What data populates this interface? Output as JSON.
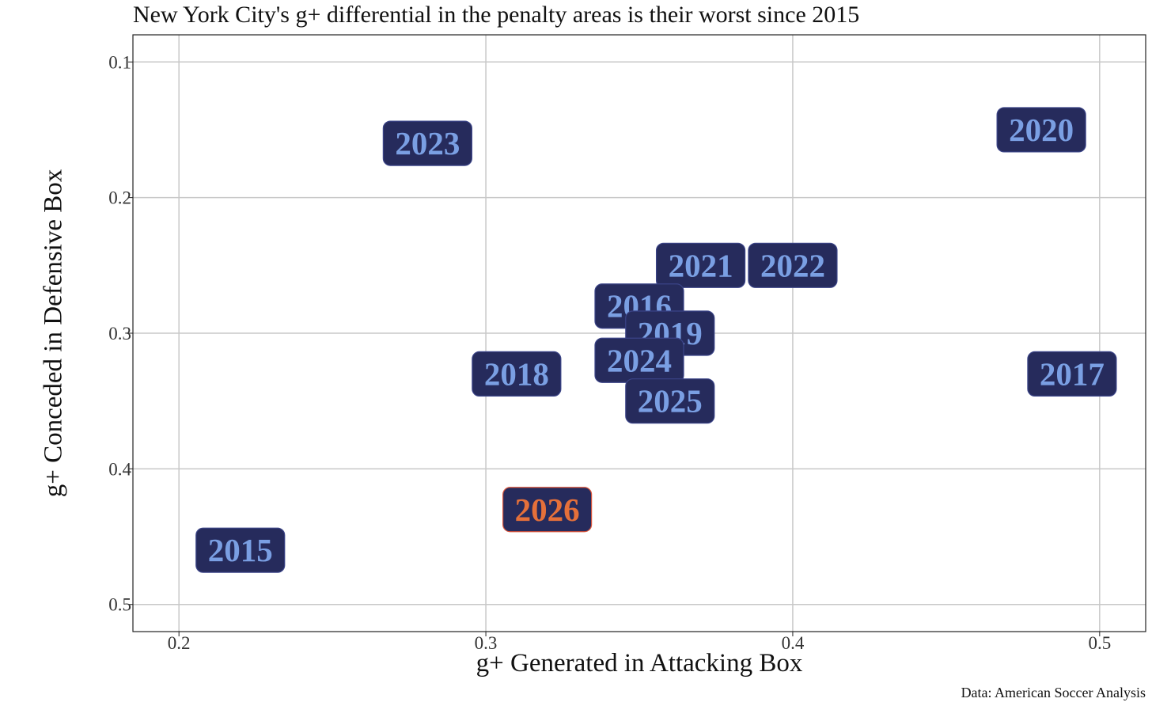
{
  "title": "New York City's g+ differential in the penalty areas is their worst since 2015",
  "caption": "Data: American Soccer Analysis",
  "colors": {
    "label_fill": "#262b5c",
    "label_text": "#7a9fe3",
    "highlight_text": "#e5703a",
    "highlight_border": "#d9543b",
    "grid": "#c8c8c8",
    "axis": "#222222"
  },
  "chart_data": {
    "type": "scatter",
    "title": "New York City's g+ differential in the penalty areas is their worst since 2015",
    "xlabel": "g+ Generated in Attacking Box",
    "ylabel": "g+ Conceded in Defensive Box",
    "xlim": [
      0.185,
      0.515
    ],
    "ylim": [
      0.52,
      0.08
    ],
    "y_reversed": true,
    "xticks": [
      0.2,
      0.3,
      0.4,
      0.5
    ],
    "xtick_labels": [
      "0.2",
      "0.3",
      "0.4",
      "0.5"
    ],
    "yticks": [
      0.1,
      0.2,
      0.3,
      0.4,
      0.5
    ],
    "ytick_labels": [
      "0.1",
      "0.2",
      "0.3",
      "0.4",
      "0.5"
    ],
    "grid": true,
    "points": [
      {
        "label": "2023",
        "x": 0.281,
        "y": 0.16,
        "highlight": false
      },
      {
        "label": "2020",
        "x": 0.481,
        "y": 0.15,
        "highlight": false
      },
      {
        "label": "2021",
        "x": 0.37,
        "y": 0.25,
        "highlight": false
      },
      {
        "label": "2022",
        "x": 0.4,
        "y": 0.25,
        "highlight": false
      },
      {
        "label": "2016",
        "x": 0.35,
        "y": 0.28,
        "highlight": false
      },
      {
        "label": "2019",
        "x": 0.36,
        "y": 0.3,
        "highlight": false
      },
      {
        "label": "2024",
        "x": 0.35,
        "y": 0.32,
        "highlight": false
      },
      {
        "label": "2018",
        "x": 0.31,
        "y": 0.33,
        "highlight": false
      },
      {
        "label": "2017",
        "x": 0.491,
        "y": 0.33,
        "highlight": false
      },
      {
        "label": "2025",
        "x": 0.36,
        "y": 0.35,
        "highlight": false
      },
      {
        "label": "2026",
        "x": 0.32,
        "y": 0.43,
        "highlight": true
      },
      {
        "label": "2015",
        "x": 0.22,
        "y": 0.46,
        "highlight": false
      }
    ]
  }
}
